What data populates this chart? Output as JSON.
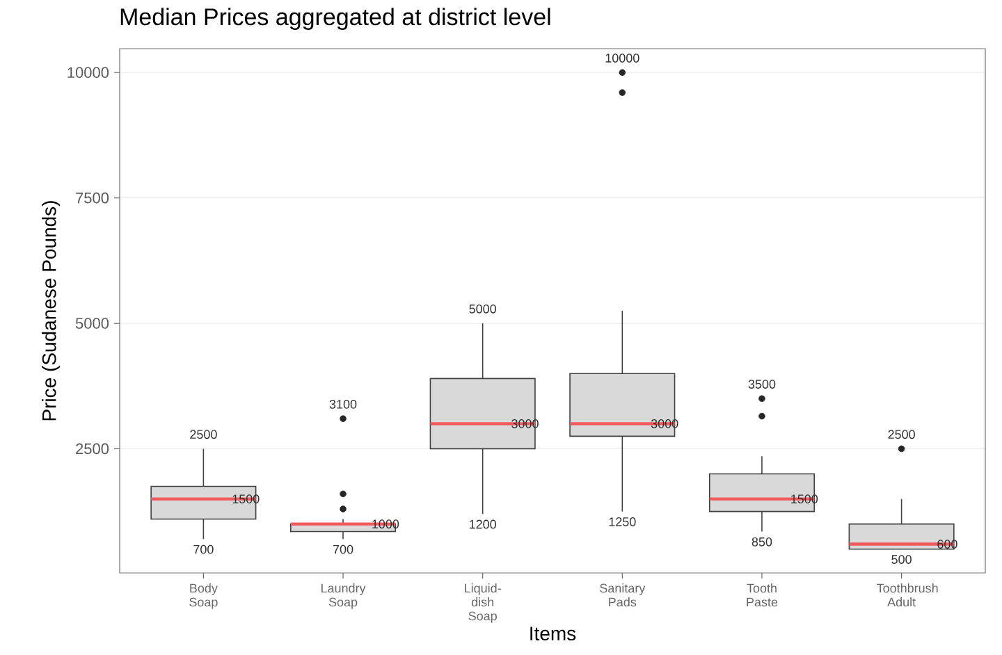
{
  "chart_data": {
    "type": "box",
    "title": "Median Prices aggregated at district level",
    "xlabel": "Items",
    "ylabel": "Price (Sudanese Pounds)",
    "categories": [
      "Body Soap",
      "Laundry Soap",
      "Liquid-dish Soap",
      "Sanitary Pads",
      "Tooth Paste",
      "Toothbrush Adult"
    ],
    "color": "#d9d9d9",
    "boxes": [
      {
        "low": 700,
        "q1": 1100,
        "median": 1500,
        "q3": 1750,
        "high": 2500
      },
      {
        "low": 700,
        "q1": 850,
        "median": 1000,
        "q3": 1000,
        "high": 1100,
        "outliers": [
          3100,
          1600,
          1300
        ]
      },
      {
        "low": 1200,
        "q1": 2500,
        "median": 3000,
        "q3": 3900,
        "high": 5000
      },
      {
        "low": 1250,
        "q1": 2750,
        "median": 3000,
        "q3": 4000,
        "high": 5250,
        "outliers": [
          10000,
          9600
        ]
      },
      {
        "low": 850,
        "q1": 1250,
        "median": 1500,
        "q3": 2000,
        "high": 2350,
        "outliers": [
          3500,
          3150
        ]
      },
      {
        "low": 500,
        "q1": 500,
        "median": 600,
        "q3": 1000,
        "high": 1500,
        "outliers": [
          2500
        ]
      }
    ],
    "ylim": [
      25,
      10475
    ],
    "yticks": [
      2500,
      5000,
      7500,
      10000
    ],
    "grid": "y",
    "annotations": [
      {
        "text": "2500",
        "x": "Body Soap",
        "y": 2500
      },
      {
        "text": "1500",
        "x": "Body Soap",
        "y": 1500
      },
      {
        "text": "700",
        "x": "Body Soap",
        "y": 700
      },
      "3100",
      {
        "text": "1000",
        "x": "Laundry Soap",
        "y": 1000
      },
      {
        "text": "700",
        "x": "Laundry Soap",
        "y": 700
      },
      {
        "text": "5000",
        "x": "Liquid-dish Soap",
        "y": 5000
      },
      {
        "text": "3000",
        "x": "Liquid-dish Soap",
        "y": 3000
      },
      {
        "text": "1200",
        "x": "Liquid-dish Soap",
        "y": 1200
      },
      "10000",
      {
        "text": "3000",
        "x": "Sanitary Pads",
        "y": 3000
      },
      {
        "text": "1250",
        "x": "Sanitary Pads",
        "y": 1250
      },
      "3500",
      {
        "text": "1500",
        "x": "Tooth Paste",
        "y": 1500
      },
      {
        "text": "850",
        "x": "Tooth Paste",
        "y": 850
      },
      "2500",
      {
        "text": "600",
        "x": "Toothbrush Adult",
        "y": 600
      },
      {
        "text": "500",
        "x": "Toothbrush Adult",
        "y": 500
      }
    ]
  }
}
